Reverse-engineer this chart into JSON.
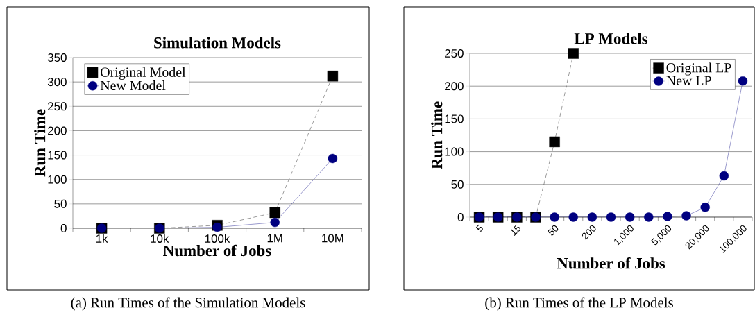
{
  "chart_data": [
    {
      "type": "line",
      "title": "Simulation Models",
      "xlabel": "Number of Jobs",
      "ylabel": "Run Time",
      "categories": [
        "1k",
        "10k",
        "100k",
        "1M",
        "10M"
      ],
      "series": [
        {
          "name": "Original Model",
          "color": "#000000",
          "marker": "square",
          "line_style": "dashed",
          "values": [
            0,
            0,
            6,
            32,
            312
          ]
        },
        {
          "name": "New Model",
          "color": "#000080",
          "marker": "circle",
          "line_style": "solid",
          "values": [
            0,
            0,
            2,
            12,
            143
          ]
        }
      ],
      "ylim": [
        0,
        350
      ],
      "yticks": [
        0,
        50,
        100,
        150,
        200,
        250,
        300,
        350
      ],
      "grid": "y",
      "legend": "top left",
      "annotations": [
        "(a) Run Times of the Simulation Models"
      ]
    },
    {
      "type": "line",
      "title": "LP Models",
      "xlabel": "Number of Jobs",
      "ylabel": "Run Time",
      "categories": [
        "5",
        null,
        "15",
        null,
        "50",
        null,
        "200",
        null,
        "1,000",
        null,
        "5,000",
        null,
        "20,000",
        null,
        "100,000"
      ],
      "series": [
        {
          "name": "Original LP",
          "color": "#000000",
          "marker": "square",
          "line_style": "dashed",
          "values": [
            0,
            0,
            0,
            0,
            115,
            250,
            null,
            null,
            null,
            null,
            null,
            null,
            null,
            null,
            null
          ]
        },
        {
          "name": "New LP",
          "color": "#000080",
          "marker": "circle",
          "line_style": "solid",
          "values": [
            0,
            0,
            0,
            0,
            0,
            0,
            0,
            0,
            0,
            0,
            1,
            2,
            15,
            63,
            208
          ]
        }
      ],
      "ylim": [
        0,
        250
      ],
      "yticks": [
        0,
        50,
        100,
        150,
        200,
        250
      ],
      "grid": "y",
      "legend": "top right",
      "annotations": [
        "(b) Run Times of the LP Models"
      ]
    }
  ]
}
